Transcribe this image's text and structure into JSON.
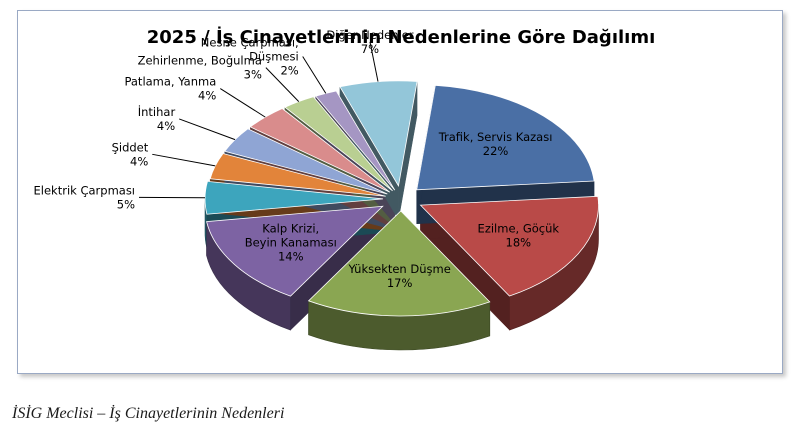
{
  "chart_data": {
    "type": "pie",
    "title": "2025 / İş Cinayetlerinin Nedenlerine Göre Dağılımı",
    "style": "3d-exploded",
    "slices": [
      {
        "label": [
          "Trafik, Servis Kazası"
        ],
        "value": 22,
        "value_label": "22%",
        "color": "#4a6fa5"
      },
      {
        "label": [
          "Ezilme, Göçük"
        ],
        "value": 18,
        "value_label": "18%",
        "color": "#b94a48"
      },
      {
        "label": [
          "Yüksekten Düşme"
        ],
        "value": 17,
        "value_label": "17%",
        "color": "#8aa652"
      },
      {
        "label": [
          "Kalp Krizi,",
          "Beyin Kanaması"
        ],
        "value": 14,
        "value_label": "14%",
        "color": "#7d63a3"
      },
      {
        "label": [
          "Elektrik Çarpması"
        ],
        "value": 5,
        "value_label": "5%",
        "color": "#3da5bd"
      },
      {
        "label": [
          "Şiddet"
        ],
        "value": 4,
        "value_label": "4%",
        "color": "#e2843a"
      },
      {
        "label": [
          "İntihar"
        ],
        "value": 4,
        "value_label": "4%",
        "color": "#8fa5d4"
      },
      {
        "label": [
          "Patlama, Yanma"
        ],
        "value": 4,
        "value_label": "4%",
        "color": "#d98c8c"
      },
      {
        "label": [
          "Zehirlenme, Boğulma"
        ],
        "value": 3,
        "value_label": "3%",
        "color": "#b9cf92"
      },
      {
        "label": [
          "Nesne Çarpması,",
          "Düşmesi"
        ],
        "value": 2,
        "value_label": "2%",
        "color": "#a596c3"
      },
      {
        "label": [
          "Diğer Nedenler"
        ],
        "value": 7,
        "value_label": "7%",
        "color": "#93c6d9"
      }
    ]
  },
  "caption": "İSİG Meclisi – İş Cinayetlerinin Nedenleri"
}
